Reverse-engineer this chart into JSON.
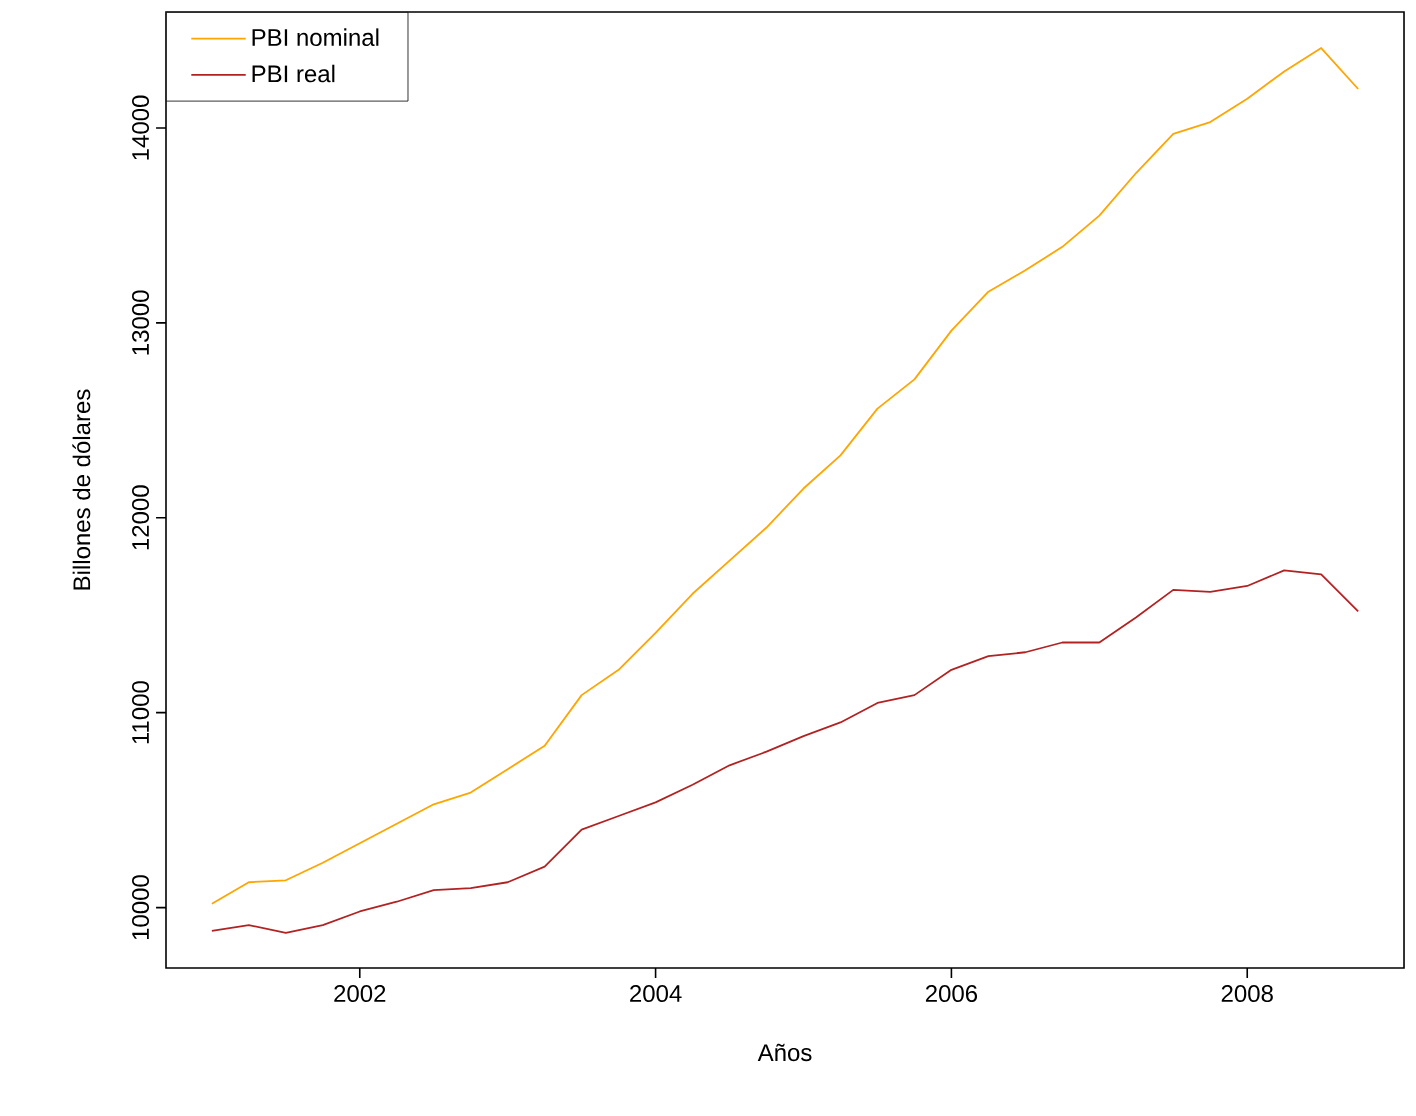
{
  "chart_data": {
    "type": "line",
    "xlabel": "Años",
    "ylabel": "Billones de dólares",
    "x": [
      2001,
      2001.25,
      2001.5,
      2001.75,
      2002,
      2002.25,
      2002.5,
      2002.75,
      2003,
      2003.25,
      2003.5,
      2003.75,
      2004,
      2004.25,
      2004.5,
      2004.75,
      2005,
      2005.25,
      2005.5,
      2005.75,
      2006,
      2006.25,
      2006.5,
      2006.75,
      2007,
      2007.25,
      2007.5,
      2007.75,
      2008,
      2008.25,
      2008.5,
      2008.75
    ],
    "series": [
      {
        "name": "PBI nominal",
        "color": "#ffa500",
        "values": [
          10020,
          10130,
          10140,
          10230,
          10330,
          10430,
          10530,
          10590,
          10710,
          10830,
          11090,
          11220,
          11410,
          11610,
          11780,
          11950,
          12150,
          12320,
          12560,
          12710,
          12960,
          13160,
          13270,
          13390,
          13550,
          13770,
          13970,
          14030,
          14150,
          14290,
          14410,
          14200
        ]
      },
      {
        "name": "PBI real",
        "color": "#b22222",
        "values": [
          9880,
          9910,
          9870,
          9910,
          9980,
          10030,
          10090,
          10100,
          10130,
          10210,
          10400,
          10470,
          10540,
          10630,
          10730,
          10800,
          10880,
          10950,
          11050,
          11090,
          11220,
          11290,
          11310,
          11360,
          11360,
          11490,
          11630,
          11620,
          11650,
          11730,
          11710,
          11520
        ]
      }
    ],
    "xlim": [
      2000.69,
      2009.06
    ],
    "ylim": [
      9690,
      14595
    ],
    "xticks": [
      2002,
      2004,
      2006,
      2008
    ],
    "yticks": [
      10000,
      11000,
      12000,
      13000,
      14000
    ],
    "legend": "top left",
    "line_style": "solid"
  }
}
